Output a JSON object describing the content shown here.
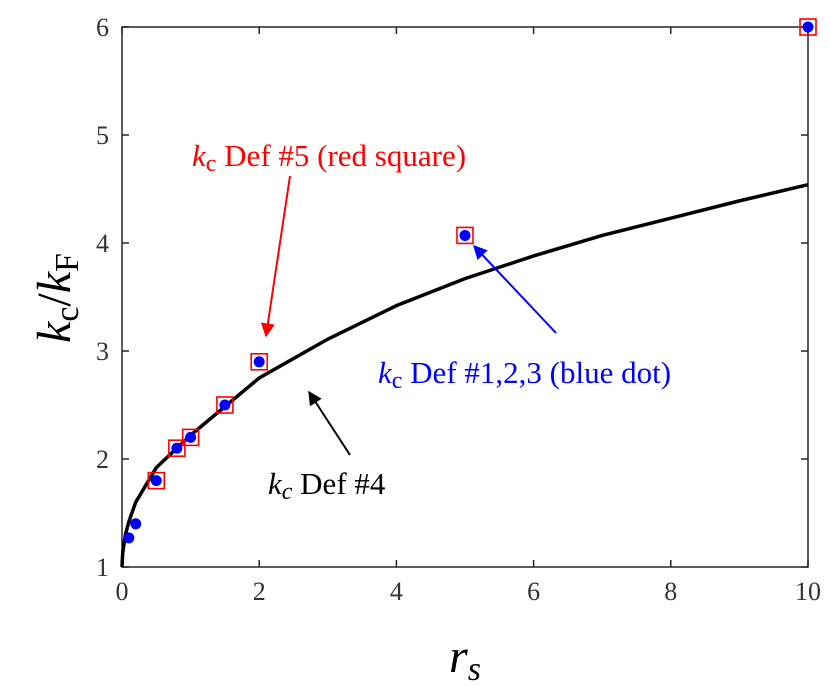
{
  "chart_data": {
    "type": "scatter",
    "xlabel": {
      "var": "r",
      "sub": "s"
    },
    "ylabel": {
      "num_var": "k",
      "num_sub": "c",
      "sep": "/",
      "den_var": "k",
      "den_sub": "F"
    },
    "xlim": [
      0,
      10
    ],
    "ylim": [
      1,
      6
    ],
    "x_ticks": [
      "0",
      "2",
      "4",
      "6",
      "8",
      "10"
    ],
    "y_ticks": [
      "1",
      "2",
      "3",
      "4",
      "5",
      "6"
    ],
    "grid": false,
    "series": [
      {
        "marker": "red-open-square",
        "color": "#ff0000",
        "x": [
          0.5,
          0.8,
          1.0,
          1.5,
          2.0,
          5.0,
          10.0
        ],
        "y": [
          1.8,
          2.1,
          2.2,
          2.5,
          2.9,
          4.07,
          6.0
        ]
      },
      {
        "marker": "blue-dot",
        "color": "#0000ff",
        "x": [
          0.1,
          0.2,
          0.5,
          0.8,
          1.0,
          1.5,
          2.0,
          5.0,
          10.0
        ],
        "y": [
          1.27,
          1.4,
          1.8,
          2.1,
          2.2,
          2.5,
          2.9,
          4.07,
          6.0
        ]
      },
      {
        "marker": "black-line",
        "color": "#000000",
        "x": [
          0.0,
          0.01,
          0.05,
          0.1,
          0.2,
          0.5,
          1.0,
          2.0,
          3.0,
          4.0,
          5.0,
          6.0,
          7.0,
          8.0,
          9.0,
          10.0
        ],
        "y": [
          1.0,
          1.13,
          1.3,
          1.42,
          1.6,
          1.92,
          2.22,
          2.75,
          3.11,
          3.42,
          3.67,
          3.88,
          4.07,
          4.23,
          4.39,
          4.54
        ]
      }
    ],
    "annotations": [
      {
        "var": "k",
        "sub": "c",
        "text": " Def #5 (red square)",
        "color": "#ff0000",
        "points_to": [
          2.1,
          2.95
        ]
      },
      {
        "var": "k",
        "sub": "c",
        "text": " Def #1,2,3 (blue dot)",
        "color": "#0000ff",
        "points_to": [
          5.1,
          4.0
        ]
      },
      {
        "var": "k",
        "sub": "c",
        "text": " Def #4",
        "color": "#000000",
        "points_to": [
          2.7,
          2.68
        ]
      }
    ]
  }
}
